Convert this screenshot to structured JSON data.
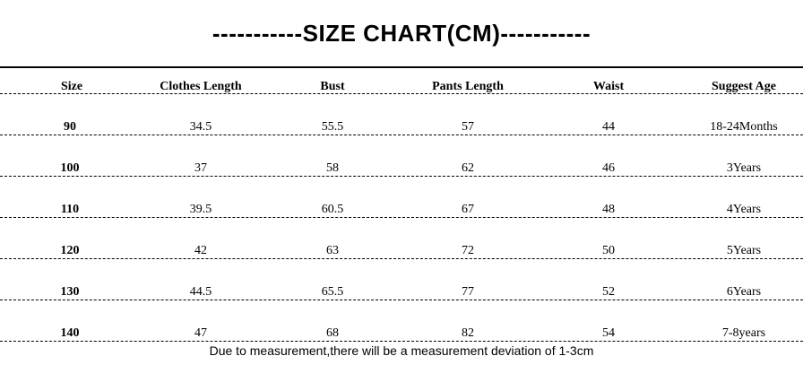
{
  "title": "-----------SIZE CHART(CM)-----------",
  "table": {
    "header": [
      "Size",
      "Clothes Length",
      "Bust",
      "Pants Length",
      "Waist",
      "Suggest Age"
    ],
    "rows": [
      [
        "90",
        "34.5",
        "55.5",
        "57",
        "44",
        "18-24Months"
      ],
      [
        "100",
        "37",
        "58",
        "62",
        "46",
        "3Years"
      ],
      [
        "110",
        "39.5",
        "60.5",
        "67",
        "48",
        "4Years"
      ],
      [
        "120",
        "42",
        "63",
        "72",
        "50",
        "5Years"
      ],
      [
        "130",
        "44.5",
        "65.5",
        "77",
        "52",
        "6Years"
      ],
      [
        "140",
        "47",
        "68",
        "82",
        "54",
        "7-8years"
      ]
    ]
  },
  "note": "Due to measurement,there will be a measurement deviation of 1-3cm"
}
